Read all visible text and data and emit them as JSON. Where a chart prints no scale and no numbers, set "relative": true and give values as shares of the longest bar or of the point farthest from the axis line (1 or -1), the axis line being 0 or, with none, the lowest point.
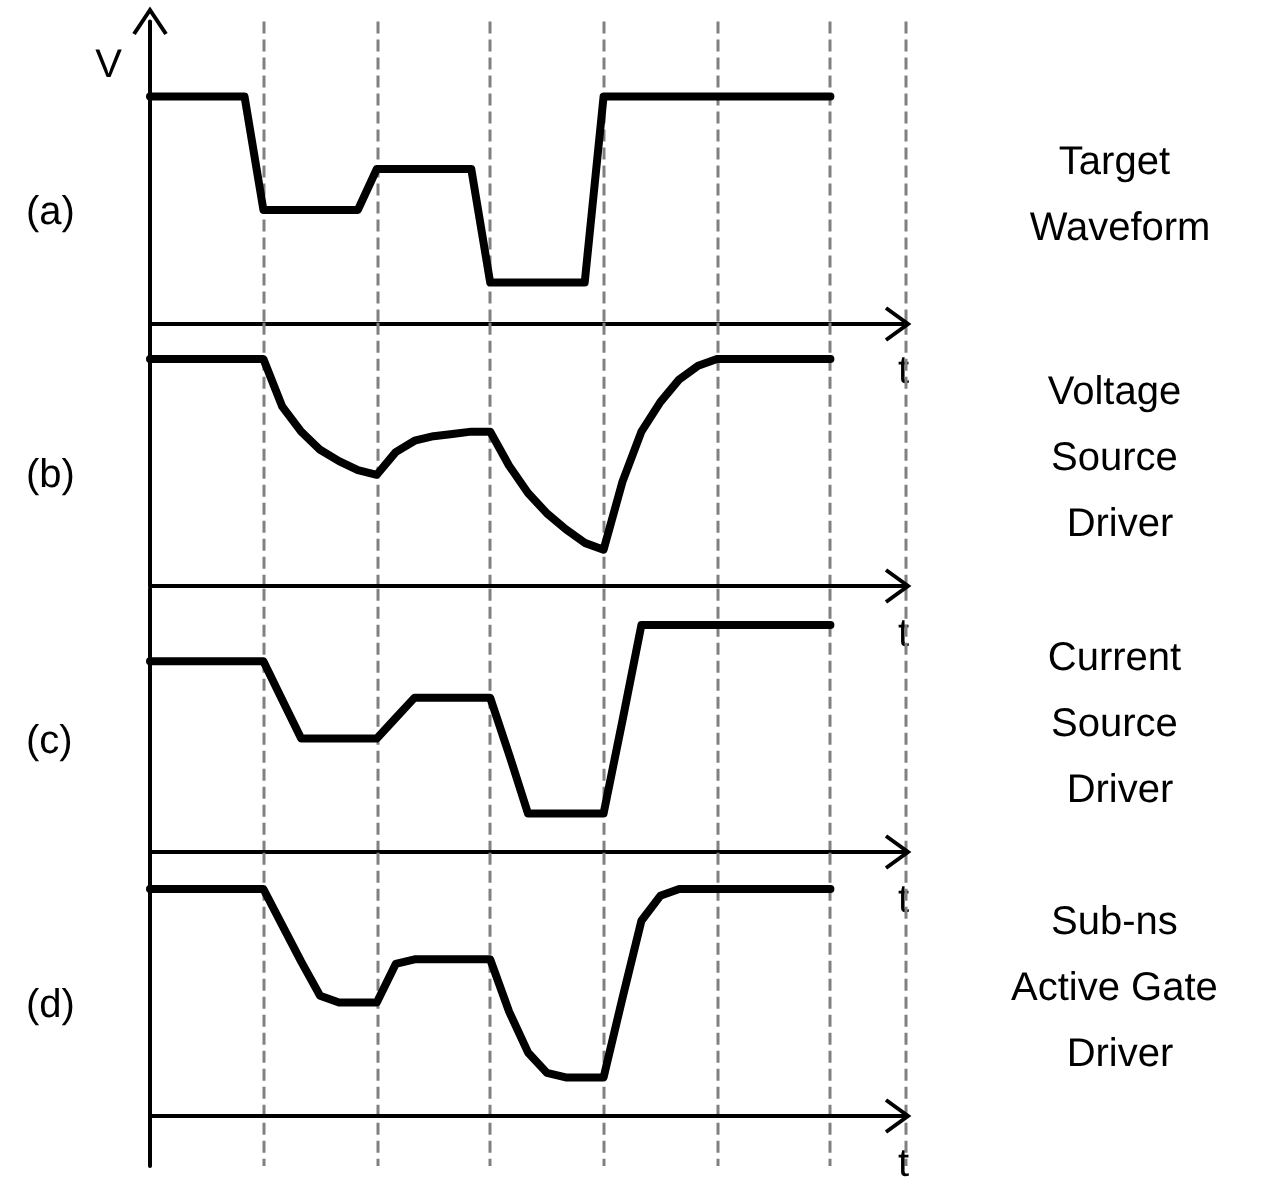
{
  "chart_data": [
    {
      "type": "line",
      "title": "(a)",
      "ylabel": "V",
      "xlabel": "t",
      "annotations": [
        "Target Waveform"
      ],
      "relative": true,
      "grid": "x",
      "categories": [
        null,
        null,
        null,
        null,
        null,
        null,
        null,
        null,
        null,
        null,
        null,
        null,
        null,
        null,
        null,
        null,
        null,
        null,
        null,
        null,
        null,
        null,
        null,
        null,
        null,
        null,
        null,
        null,
        null,
        null,
        null,
        null,
        null,
        null,
        null,
        null,
        null,
        null,
        null,
        null,
        null
      ],
      "series": [
        {
          "color": "#000000",
          "values": [
            1,
            1,
            1,
            1,
            1,
            1,
            0.5,
            0.5,
            0.5,
            0.5,
            0.5,
            0.5,
            0.68,
            0.68,
            0.68,
            0.68,
            0.68,
            0.68,
            0.18,
            0.18,
            0.18,
            0.18,
            0.18,
            0.18,
            1,
            1,
            1,
            1,
            1,
            1,
            1,
            1,
            1,
            1,
            1,
            1,
            1,
            null,
            null,
            null,
            null
          ]
        }
      ]
    },
    {
      "type": "line",
      "title": "(b)",
      "xlabel": "t",
      "annotations": [
        "Voltage Source Driver"
      ],
      "relative": true,
      "grid": "x",
      "categories": [
        null,
        null,
        null,
        null,
        null,
        null,
        null,
        null,
        null,
        null,
        null,
        null,
        null,
        null,
        null,
        null,
        null,
        null,
        null,
        null,
        null,
        null,
        null,
        null,
        null,
        null,
        null,
        null,
        null,
        null,
        null,
        null,
        null,
        null,
        null,
        null,
        null,
        null,
        null,
        null,
        null
      ],
      "series": [
        {
          "color": "#000000",
          "values": [
            1,
            1,
            1,
            1,
            1,
            1,
            1,
            0.79,
            0.68,
            0.6,
            0.55,
            0.51,
            0.49,
            0.59,
            0.64,
            0.66,
            0.67,
            0.68,
            0.68,
            0.53,
            0.41,
            0.32,
            0.25,
            0.19,
            0.16,
            0.46,
            0.68,
            0.81,
            0.91,
            0.97,
            1,
            1,
            1,
            1,
            1,
            1,
            1,
            null,
            null,
            null,
            null
          ]
        }
      ]
    },
    {
      "type": "line",
      "title": "(c)",
      "xlabel": "t",
      "annotations": [
        "Current Source Driver"
      ],
      "relative": true,
      "grid": "x",
      "categories": [
        null,
        null,
        null,
        null,
        null,
        null,
        null,
        null,
        null,
        null,
        null,
        null,
        null,
        null,
        null,
        null,
        null,
        null,
        null,
        null,
        null,
        null,
        null,
        null,
        null,
        null,
        null,
        null,
        null,
        null,
        null,
        null,
        null,
        null,
        null,
        null,
        null,
        null,
        null,
        null,
        null
      ],
      "series": [
        {
          "color": "#000000",
          "values": [
            0.84,
            0.84,
            0.84,
            0.84,
            0.84,
            0.84,
            0.84,
            0.67,
            0.5,
            0.5,
            0.5,
            0.5,
            0.5,
            0.59,
            0.68,
            0.68,
            0.68,
            0.68,
            0.68,
            0.43,
            0.17,
            0.17,
            0.17,
            0.17,
            0.17,
            0.58,
            1,
            1,
            1,
            1,
            1,
            1,
            1,
            1,
            1,
            1,
            1,
            null,
            null,
            null,
            null
          ]
        }
      ]
    },
    {
      "type": "line",
      "title": "(d)",
      "xlabel": "t",
      "annotations": [
        "Sub-ns Active Gate Driver"
      ],
      "relative": true,
      "grid": "x",
      "categories": [
        null,
        null,
        null,
        null,
        null,
        null,
        null,
        null,
        null,
        null,
        null,
        null,
        null,
        null,
        null,
        null,
        null,
        null,
        null,
        null,
        null,
        null,
        null,
        null,
        null,
        null,
        null,
        null,
        null,
        null,
        null,
        null,
        null,
        null,
        null,
        null,
        null,
        null,
        null,
        null,
        null
      ],
      "series": [
        {
          "color": "#000000",
          "values": [
            1,
            1,
            1,
            1,
            1,
            1,
            1,
            0.84,
            0.68,
            0.53,
            0.5,
            0.5,
            0.5,
            0.67,
            0.69,
            0.69,
            0.69,
            0.69,
            0.69,
            0.46,
            0.28,
            0.19,
            0.17,
            0.17,
            0.17,
            0.52,
            0.86,
            0.97,
            1,
            1,
            1,
            1,
            1,
            1,
            1,
            1,
            1,
            null,
            null,
            null,
            null
          ]
        }
      ]
    }
  ]
}
